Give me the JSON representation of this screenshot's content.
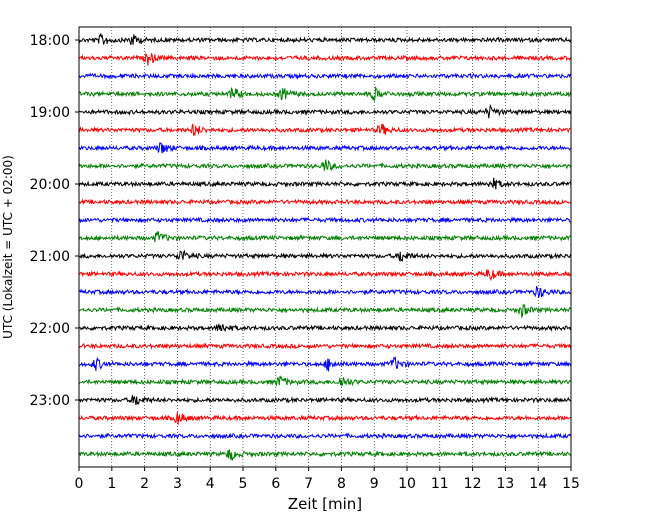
{
  "chart_data": {
    "type": "line",
    "xlabel": "Zeit  [min]",
    "ylabel": "UTC (Lokalzeit = UTC + 02:00)",
    "xlim": [
      0,
      15
    ],
    "x_ticks": [
      0,
      1,
      2,
      3,
      4,
      5,
      6,
      7,
      8,
      9,
      10,
      11,
      12,
      13,
      14,
      15
    ],
    "y_ticks": [
      "18:00",
      "19:00",
      "20:00",
      "21:00",
      "22:00",
      "23:00"
    ],
    "grid": "vertical-dotted",
    "trace_colors": [
      "#000000",
      "#ff0000",
      "#0000ff",
      "#008000"
    ],
    "traces_per_hour": 4,
    "trace_interval_min": 15,
    "start": "18:00",
    "end": "23:45",
    "series": [
      {
        "start": "18:00",
        "events": [
          0.7,
          1.6
        ]
      },
      {
        "start": "18:15",
        "events": [
          2.1
        ]
      },
      {
        "start": "18:30",
        "events": []
      },
      {
        "start": "18:45",
        "events": [
          4.7,
          6.2,
          9.0
        ]
      },
      {
        "start": "19:00",
        "events": [
          12.5
        ]
      },
      {
        "start": "19:15",
        "events": [
          3.5,
          9.2
        ]
      },
      {
        "start": "19:30",
        "events": [
          2.5
        ]
      },
      {
        "start": "19:45",
        "events": [
          7.5
        ]
      },
      {
        "start": "20:00",
        "events": [
          12.6
        ]
      },
      {
        "start": "20:15",
        "events": []
      },
      {
        "start": "20:30",
        "events": []
      },
      {
        "start": "20:45",
        "events": [
          2.4
        ]
      },
      {
        "start": "21:00",
        "events": [
          3.1,
          9.8
        ]
      },
      {
        "start": "21:15",
        "events": [
          12.5
        ]
      },
      {
        "start": "21:30",
        "events": [
          14.0
        ]
      },
      {
        "start": "21:45",
        "events": [
          13.5
        ]
      },
      {
        "start": "22:00",
        "events": [
          4.3
        ]
      },
      {
        "start": "22:15",
        "events": []
      },
      {
        "start": "22:30",
        "events": [
          0.5,
          7.6,
          9.6
        ]
      },
      {
        "start": "22:45",
        "events": [
          6.1,
          8.0
        ]
      },
      {
        "start": "23:00",
        "events": [
          1.7
        ]
      },
      {
        "start": "23:15",
        "events": [
          3.0
        ]
      },
      {
        "start": "23:30",
        "events": []
      },
      {
        "start": "23:45",
        "events": [
          4.6
        ]
      }
    ]
  }
}
